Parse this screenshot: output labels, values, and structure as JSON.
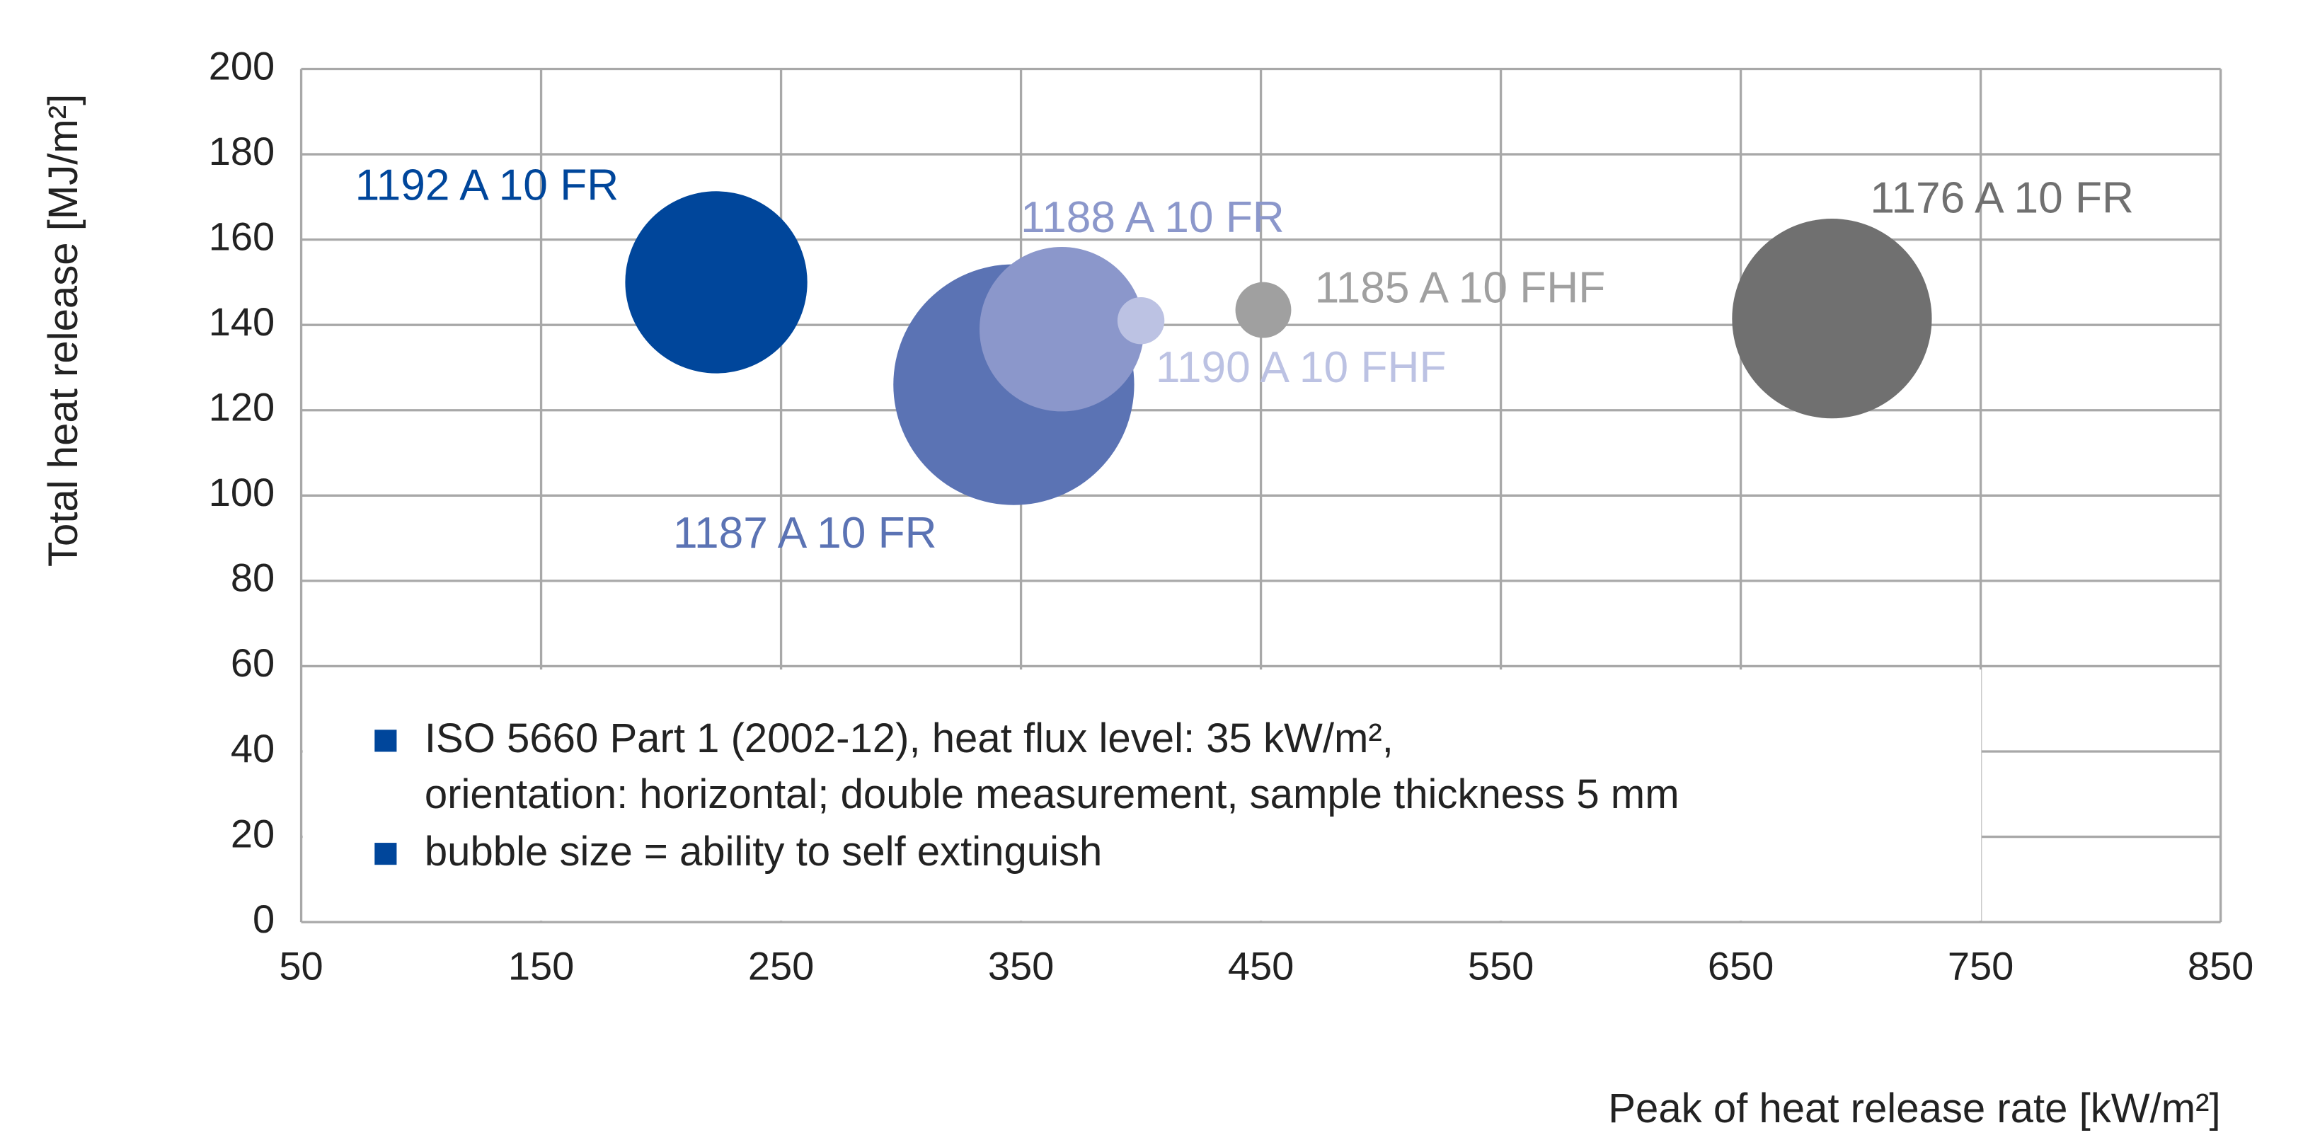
{
  "chart_data": {
    "type": "scatter",
    "xlabel": "Peak of heat release rate [kW/m²]",
    "ylabel": "Total heat release [MJ/m²]",
    "xlim": [
      50,
      850
    ],
    "xticks": [
      50,
      150,
      250,
      350,
      450,
      550,
      650,
      750,
      850
    ],
    "ylim": [
      0,
      200
    ],
    "yticks": [
      0,
      20,
      40,
      60,
      80,
      100,
      120,
      140,
      160,
      180,
      200
    ],
    "grid": true,
    "annotations": [
      "ISO 5660 Part 1 (2002-12), heat flux level: 35 kW/m²,",
      "orientation: horizontal; double measurement, sample thickness 5 mm",
      "bubble size = ability to self extinguish"
    ],
    "annotation_color": "#00469b",
    "series": [
      {
        "name": "1192 A 10 FR",
        "color": "#00469b",
        "x": [
          223
        ],
        "values": [
          150
        ],
        "sizes": [
          62
        ]
      },
      {
        "name": "1187 A 10 FR",
        "color": "#5b73b4",
        "x": [
          347
        ],
        "values": [
          126
        ],
        "sizes": [
          82
        ]
      },
      {
        "name": "1188 A 10 FR",
        "color": "#8b97cb",
        "x": [
          367
        ],
        "values": [
          139
        ],
        "sizes": [
          56
        ]
      },
      {
        "name": "1190 A 10 FHF",
        "color": "#bcc2e3",
        "x": [
          400
        ],
        "values": [
          141
        ],
        "sizes": [
          16
        ]
      },
      {
        "name": "1185 A 10 FHF",
        "color": "#a0a0a0",
        "x": [
          451
        ],
        "values": [
          143.5
        ],
        "sizes": [
          19
        ]
      },
      {
        "name": "1176 A 10 FR",
        "color": "#707070",
        "x": [
          688
        ],
        "values": [
          141.5
        ],
        "sizes": [
          68
        ]
      }
    ]
  }
}
